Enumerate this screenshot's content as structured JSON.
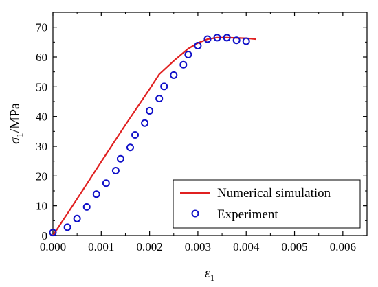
{
  "chart_data": {
    "type": "line",
    "xlabel": {
      "symbol": "ε",
      "sub": "1"
    },
    "ylabel": {
      "symbol": "σ",
      "sub": "1",
      "unit": "/MPa"
    },
    "xlim": [
      0,
      0.0065
    ],
    "ylim": [
      0,
      75
    ],
    "x_ticks": [
      0.0,
      0.001,
      0.002,
      0.003,
      0.004,
      0.005,
      0.006
    ],
    "x_tick_labels": [
      "0.000",
      "0.001",
      "0.002",
      "0.003",
      "0.004",
      "0.005",
      "0.006"
    ],
    "y_ticks": [
      0,
      10,
      20,
      30,
      40,
      50,
      60,
      70
    ],
    "y_tick_labels": [
      "0",
      "10",
      "20",
      "30",
      "40",
      "50",
      "60",
      "70"
    ],
    "grid": false,
    "legend_position": "bottom-right",
    "series": [
      {
        "name": "Numerical simulation",
        "kind": "line",
        "color": "#e02020",
        "points": [
          [
            0.0,
            0.0
          ],
          [
            0.0005,
            12.3
          ],
          [
            0.001,
            24.8
          ],
          [
            0.0015,
            37.2
          ],
          [
            0.002,
            49.2
          ],
          [
            0.0022,
            54.2
          ],
          [
            0.0025,
            58.7
          ],
          [
            0.0028,
            62.8
          ],
          [
            0.003,
            64.7
          ],
          [
            0.0032,
            66.0
          ],
          [
            0.0034,
            66.5
          ],
          [
            0.0036,
            66.5
          ],
          [
            0.0038,
            66.4
          ],
          [
            0.004,
            66.3
          ],
          [
            0.0042,
            66.0
          ]
        ]
      },
      {
        "name": "Experiment",
        "kind": "scatter",
        "color": "#1010c8",
        "points": [
          [
            0.0,
            1.0
          ],
          [
            0.0003,
            2.8
          ],
          [
            0.0005,
            5.7
          ],
          [
            0.0007,
            9.6
          ],
          [
            0.0009,
            13.9
          ],
          [
            0.0011,
            17.6
          ],
          [
            0.0013,
            21.8
          ],
          [
            0.0014,
            25.8
          ],
          [
            0.0016,
            29.6
          ],
          [
            0.0017,
            33.8
          ],
          [
            0.0019,
            37.8
          ],
          [
            0.002,
            41.9
          ],
          [
            0.0022,
            46.0
          ],
          [
            0.0023,
            50.1
          ],
          [
            0.0025,
            53.9
          ],
          [
            0.0027,
            57.4
          ],
          [
            0.0028,
            60.8
          ],
          [
            0.003,
            63.8
          ],
          [
            0.0032,
            66.0
          ],
          [
            0.0034,
            66.5
          ],
          [
            0.0036,
            66.5
          ],
          [
            0.0038,
            65.6
          ],
          [
            0.004,
            65.3
          ]
        ]
      }
    ]
  }
}
